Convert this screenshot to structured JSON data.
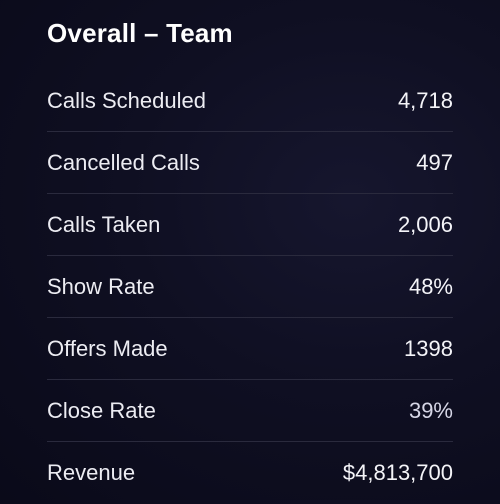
{
  "panel": {
    "title": "Overall – Team"
  },
  "metrics": [
    {
      "label": "Calls Scheduled",
      "value": "4,718"
    },
    {
      "label": "Cancelled Calls",
      "value": "497"
    },
    {
      "label": "Calls Taken",
      "value": "2,006"
    },
    {
      "label": "Show Rate",
      "value": "48%"
    },
    {
      "label": "Offers Made",
      "value": "1398"
    },
    {
      "label": "Close Rate",
      "value": "39%"
    },
    {
      "label": "Revenue",
      "value": "$4,813,700"
    }
  ]
}
